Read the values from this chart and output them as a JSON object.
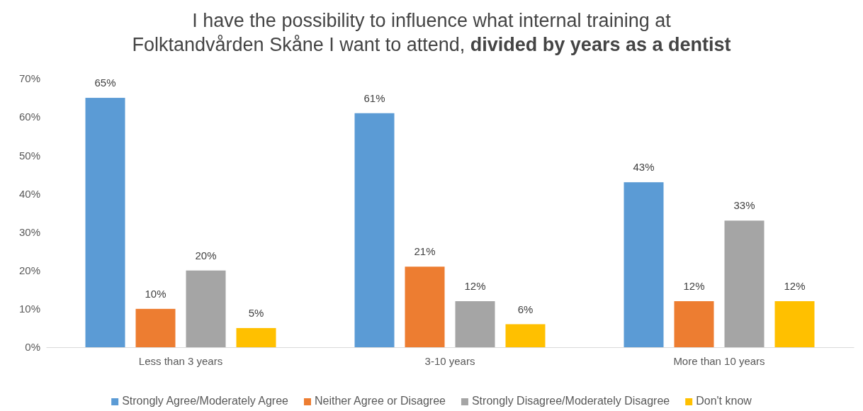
{
  "chart_data": {
    "type": "bar",
    "title": "I have the possibility to influence what internal training at Folktandvården Skåne I want to attend,",
    "subtitle": "divided by years as a dentist",
    "categories": [
      "Less than 3 years",
      "3-10 years",
      "More than 10 years"
    ],
    "series": [
      {
        "name": "Strongly Agree/Moderately Agree",
        "color": "#5b9bd5",
        "values": [
          65,
          61,
          43
        ],
        "value_labels": [
          "65%",
          "61%",
          "43%"
        ]
      },
      {
        "name": "Neither Agree or Disagree",
        "color": "#ed7d31",
        "values": [
          10,
          21,
          12
        ],
        "value_labels": [
          "10%",
          "21%",
          "12%"
        ]
      },
      {
        "name": "Strongly Disagree/Moderately Disagree",
        "color": "#a5a5a5",
        "values": [
          20,
          12,
          33
        ],
        "value_labels": [
          "20%",
          "12%",
          "33%"
        ]
      },
      {
        "name": "Don't know",
        "color": "#ffc000",
        "values": [
          5,
          6,
          12
        ],
        "value_labels": [
          "5%",
          "6%",
          "12%"
        ]
      }
    ],
    "ylim": [
      0,
      70
    ],
    "yticks": [
      {
        "value": 0,
        "label": "0%"
      },
      {
        "value": 10,
        "label": "10%"
      },
      {
        "value": 20,
        "label": "20%"
      },
      {
        "value": 30,
        "label": "30%"
      },
      {
        "value": 40,
        "label": "40%"
      },
      {
        "value": 50,
        "label": "50%"
      },
      {
        "value": 60,
        "label": "60%"
      },
      {
        "value": 70,
        "label": "70%"
      }
    ],
    "legend": "bottom"
  }
}
